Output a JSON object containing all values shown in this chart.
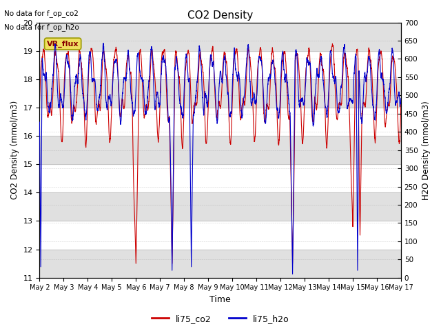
{
  "title": "CO2 Density",
  "xlabel": "Time",
  "ylabel_left": "CO2 Density (mmol/m3)",
  "ylabel_right": "H2O Density (mmol/m3)",
  "ylim_left": [
    11.0,
    20.0
  ],
  "ylim_right": [
    0,
    700
  ],
  "yticks_left": [
    11.0,
    12.0,
    13.0,
    14.0,
    15.0,
    16.0,
    17.0,
    18.0,
    19.0,
    20.0
  ],
  "yticks_right": [
    0,
    50,
    100,
    150,
    200,
    250,
    300,
    350,
    400,
    450,
    500,
    550,
    600,
    650,
    700
  ],
  "xtick_labels": [
    "May 2",
    "May 3",
    "May 4",
    "May 5",
    "May 6",
    "May 7",
    "May 8",
    "May 9",
    "May 10",
    "May 11",
    "May 12",
    "May 13",
    "May 14",
    "May 15",
    "May 16",
    "May 17"
  ],
  "no_data_text1": "No data for f_op_co2",
  "no_data_text2": "No data for f_op_h2o",
  "vr_flux_label": "VR_flux",
  "legend_entries": [
    "li75_co2",
    "li75_h2o"
  ],
  "legend_colors": [
    "#cc0000",
    "#0000cc"
  ],
  "color_co2": "#cc0000",
  "color_h2o": "#0000cc",
  "background_color": "#ffffff",
  "band_color": "#e0e0e0",
  "n_days": 15,
  "pts_per_day": 288
}
